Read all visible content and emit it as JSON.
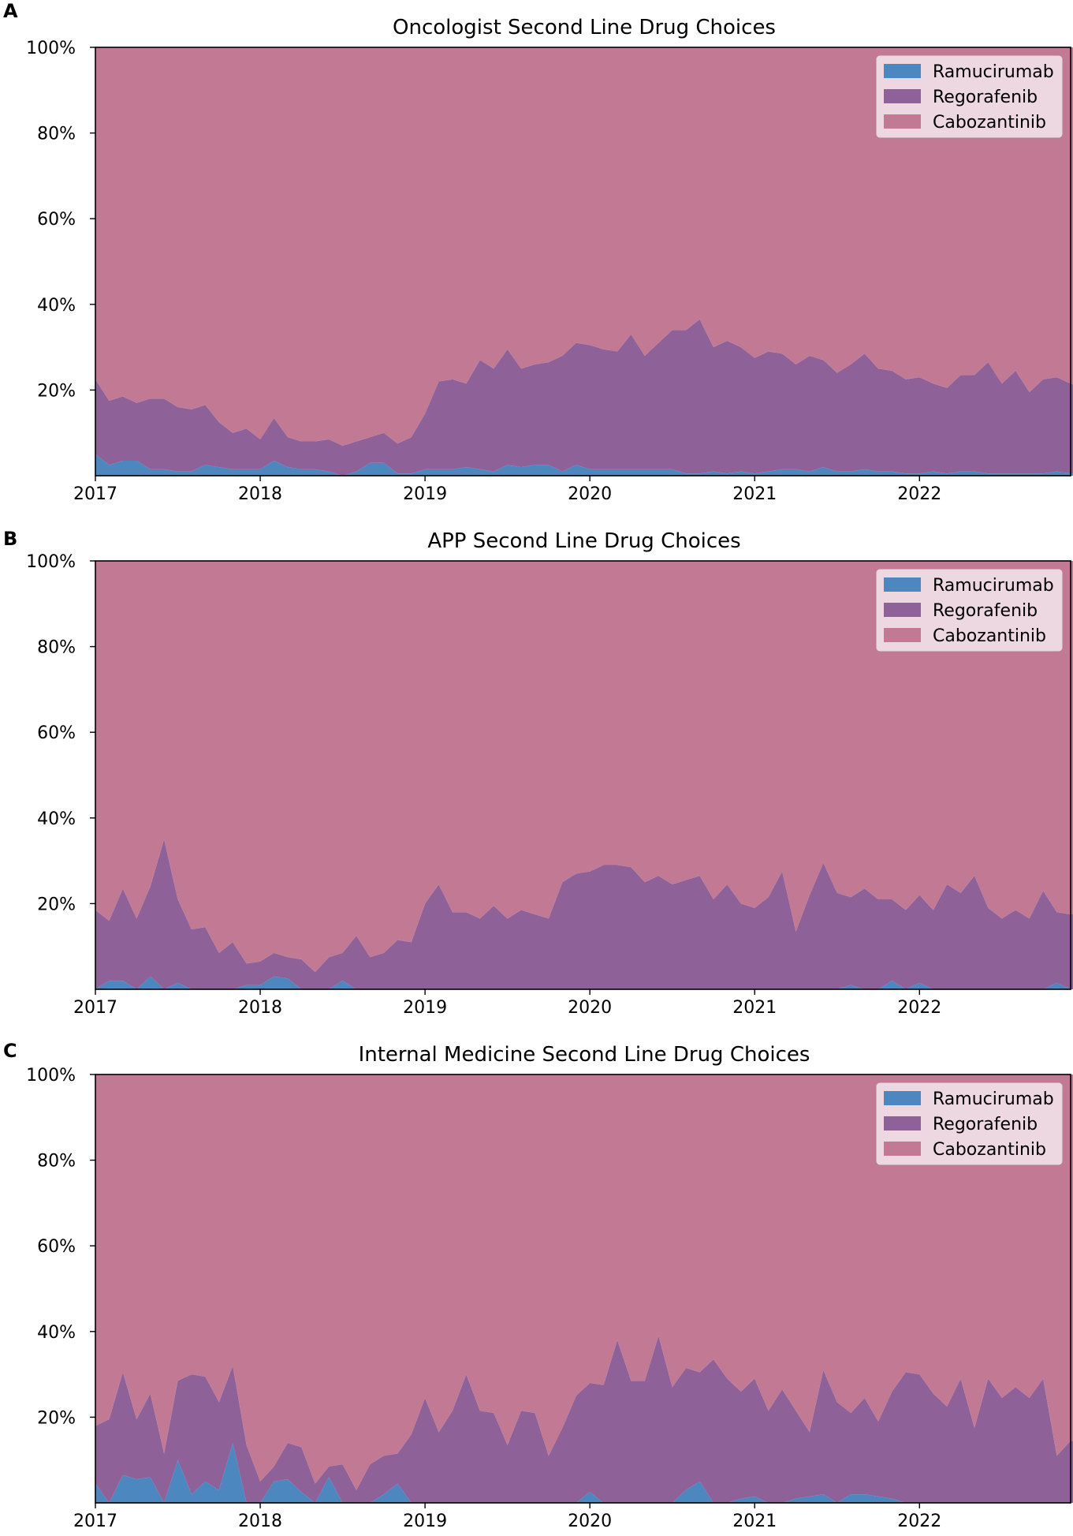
{
  "figure": {
    "panels": [
      "A",
      "B",
      "C"
    ],
    "colors": {
      "Ramucirumab": "#4d87c0",
      "Regorafenib": "#8e6199",
      "Cabozantinib": "#c27a94",
      "legend_bg": "#f3e4ea",
      "axis": "#000000"
    }
  },
  "chart_data": [
    {
      "panel": "A",
      "type": "area",
      "stacked": "percent",
      "title": "Oncologist Second Line Drug Choices",
      "xlabel": "",
      "ylabel": "",
      "x_start": 2017.0,
      "x_step_months": 1,
      "xlim": [
        2017.0,
        2022.917
      ],
      "ylim": [
        0,
        100
      ],
      "xtick_labels": [
        "2017",
        "2018",
        "2019",
        "2020",
        "2021",
        "2022"
      ],
      "ytick_labels": [
        "20%",
        "40%",
        "60%",
        "80%",
        "100%"
      ],
      "legend": [
        "Ramucirumab",
        "Regorafenib",
        "Cabozantinib"
      ],
      "legend_location": "top-right",
      "series": [
        {
          "name": "Ramucirumab",
          "values": [
            5,
            2.5,
            3.5,
            3.5,
            1.5,
            1.5,
            1,
            1,
            2.5,
            2,
            1.5,
            1.5,
            1.5,
            3.5,
            2,
            1.5,
            1.5,
            1,
            0,
            1,
            3,
            3,
            0.5,
            0.5,
            1.5,
            1.5,
            1.5,
            2,
            1.5,
            1,
            2.5,
            2,
            2.5,
            2.5,
            1,
            2.5,
            1.5,
            1.5,
            1.5,
            1.5,
            1.5,
            1.5,
            1.5,
            0.5,
            0.5,
            1,
            0.5,
            1,
            0.5,
            1,
            1.5,
            1.5,
            1,
            2,
            1,
            1,
            1.5,
            1,
            1,
            0.5,
            0.5,
            1,
            0.5,
            1,
            1,
            0.5,
            0.5,
            0.5,
            0.5,
            0.5,
            1,
            0.5,
            0.5
          ]
        },
        {
          "name": "Regorafenib",
          "values": [
            17.5,
            15,
            15,
            13.5,
            16.5,
            16.5,
            15,
            14.5,
            14,
            10.5,
            8.5,
            9.5,
            7,
            10,
            7,
            6.5,
            6.5,
            7.5,
            7,
            7,
            6,
            7,
            7,
            8.5,
            13,
            20.5,
            21,
            19.5,
            25.5,
            24,
            27,
            23,
            23.5,
            24,
            27,
            28.5,
            29,
            28,
            27.5,
            31.5,
            26.5,
            29.5,
            32.5,
            33.5,
            36,
            29,
            31,
            29,
            27,
            28,
            27,
            24.5,
            27,
            25,
            23,
            25,
            27,
            24,
            23.5,
            22,
            22.5,
            20.5,
            20,
            22.5,
            22.5,
            26,
            21,
            24,
            19,
            22,
            22,
            21,
            20,
            20.5
          ]
        },
        {
          "name": "Cabozantinib",
          "values": [
            77.5,
            82.5,
            81.5,
            83,
            82,
            82,
            84,
            84.5,
            83.5,
            87.5,
            90,
            89,
            91.5,
            86.5,
            91,
            92,
            92,
            91.5,
            93,
            92,
            91,
            90,
            92.5,
            91,
            85.5,
            78,
            77.5,
            78.5,
            73,
            75,
            70.5,
            75,
            74,
            73.5,
            72,
            69,
            69.5,
            70.5,
            71,
            67,
            72,
            69,
            66,
            66,
            63.5,
            70,
            68.5,
            70,
            72.5,
            71,
            71.5,
            74,
            72,
            73,
            76,
            74,
            71.5,
            75,
            75.5,
            77.5,
            77,
            78.5,
            79.5,
            76.5,
            76.5,
            73.5,
            78.5,
            75.5,
            80.5,
            77.5,
            77,
            78.5,
            79.5,
            79
          ]
        }
      ]
    },
    {
      "panel": "B",
      "type": "area",
      "stacked": "percent",
      "title": "APP Second Line Drug Choices",
      "xlabel": "",
      "ylabel": "",
      "x_start": 2017.0,
      "x_step_months": 1,
      "xlim": [
        2017.0,
        2022.917
      ],
      "ylim": [
        0,
        100
      ],
      "xtick_labels": [
        "2017",
        "2018",
        "2019",
        "2020",
        "2021",
        "2022"
      ],
      "ytick_labels": [
        "20%",
        "40%",
        "60%",
        "80%",
        "100%"
      ],
      "legend": [
        "Ramucirumab",
        "Regorafenib",
        "Cabozantinib"
      ],
      "legend_location": "top-right",
      "series": [
        {
          "name": "Ramucirumab",
          "values": [
            0,
            2,
            2,
            0,
            3,
            0,
            1.5,
            0,
            0,
            0,
            0,
            1,
            1,
            3,
            2.5,
            0,
            0,
            0,
            2,
            0,
            0,
            0,
            0,
            0,
            0,
            0,
            0,
            0,
            0,
            0,
            0,
            0,
            0,
            0,
            0,
            0,
            0,
            0,
            0,
            0,
            0,
            0,
            0,
            0,
            0,
            0,
            0,
            0,
            0,
            0,
            0,
            0,
            0,
            0,
            0,
            1,
            0,
            0,
            2,
            0,
            1.5,
            0,
            0,
            0,
            0,
            0,
            0,
            0,
            0,
            0,
            1.5,
            0,
            0,
            0
          ]
        },
        {
          "name": "Regorafenib",
          "values": [
            18.5,
            14,
            21.5,
            16.5,
            21,
            35,
            19.5,
            14,
            14.5,
            8.5,
            11,
            5,
            5.5,
            5.5,
            5,
            7,
            4,
            7.5,
            6.5,
            12.5,
            7.5,
            8.5,
            11.5,
            11,
            20,
            24.5,
            18,
            18,
            16.5,
            19.5,
            16.5,
            18.5,
            17.5,
            16.5,
            25,
            27,
            27.5,
            29,
            29,
            28.5,
            25,
            26.5,
            24.5,
            25.5,
            26.5,
            21,
            24.5,
            20,
            19,
            21.5,
            27.5,
            13.5,
            22,
            29.5,
            22.5,
            20.5,
            23.5,
            21,
            19,
            18.5,
            20.5,
            18.5,
            24.5,
            22.5,
            26.5,
            19,
            16.5,
            18.5,
            16.5,
            23,
            16.5,
            17.5,
            17.5,
            15
          ]
        },
        {
          "name": "Cabozantinib",
          "values": [
            81.5,
            84,
            76.5,
            83.5,
            76,
            65,
            79,
            86,
            85.5,
            91.5,
            89,
            94,
            93.5,
            91.5,
            92.5,
            93,
            96,
            92.5,
            91.5,
            87.5,
            92.5,
            91.5,
            88.5,
            89,
            80,
            75.5,
            82,
            82,
            83.5,
            80.5,
            83.5,
            81.5,
            82.5,
            83.5,
            75,
            73,
            72.5,
            71,
            71,
            71.5,
            75,
            73.5,
            75.5,
            74.5,
            73.5,
            79,
            75.5,
            80,
            81,
            78.5,
            72.5,
            86.5,
            78,
            70.5,
            77.5,
            78.5,
            76.5,
            79,
            79,
            81.5,
            78,
            81.5,
            75.5,
            77.5,
            73.5,
            81,
            83.5,
            81.5,
            83.5,
            77,
            82,
            82.5,
            82.5,
            85
          ]
        }
      ]
    },
    {
      "panel": "C",
      "type": "area",
      "stacked": "percent",
      "title": "Internal Medicine Second Line Drug Choices",
      "xlabel": "",
      "ylabel": "",
      "x_start": 2017.0,
      "x_step_months": 1,
      "xlim": [
        2017.0,
        2022.917
      ],
      "ylim": [
        0,
        100
      ],
      "xtick_labels": [
        "2017",
        "2018",
        "2019",
        "2020",
        "2021",
        "2022"
      ],
      "ytick_labels": [
        "20%",
        "40%",
        "60%",
        "80%",
        "100%"
      ],
      "legend": [
        "Ramucirumab",
        "Regorafenib",
        "Cabozantinib"
      ],
      "legend_location": "top-right",
      "series": [
        {
          "name": "Ramucirumab",
          "values": [
            4.5,
            0,
            6.5,
            5.5,
            6,
            0,
            10,
            2,
            5,
            3,
            14,
            0,
            0,
            5,
            5.5,
            2.5,
            0,
            6,
            0,
            0,
            0,
            2,
            4.5,
            0,
            0,
            0,
            0,
            0,
            0,
            0,
            0,
            0,
            0,
            0,
            0,
            0,
            2.5,
            0,
            0,
            0,
            0,
            0,
            0,
            3,
            5,
            0,
            0,
            1,
            1.5,
            0,
            0,
            1,
            1.5,
            2,
            0,
            2,
            2,
            1.5,
            1,
            0,
            0,
            0,
            0,
            0,
            0,
            0,
            0,
            0,
            0,
            0,
            0,
            0,
            0,
            0
          ]
        },
        {
          "name": "Regorafenib",
          "values": [
            13.5,
            19.5,
            24,
            14,
            19.5,
            11.5,
            18.5,
            28,
            24.5,
            20.5,
            18,
            13.5,
            5,
            3.5,
            8.5,
            10.5,
            4.5,
            2.5,
            9,
            3,
            9,
            9,
            7,
            16,
            24.5,
            16.5,
            21.5,
            30,
            21.5,
            21,
            13.5,
            21.5,
            21,
            11,
            17.5,
            25,
            25.5,
            27.5,
            38,
            28.5,
            28.5,
            39,
            27,
            28.5,
            25.5,
            33.5,
            29,
            25,
            27.5,
            21.5,
            26.5,
            20.5,
            15,
            29,
            23.5,
            19,
            22.5,
            17.5,
            25,
            30.5,
            30,
            25.5,
            22.5,
            29,
            17.5,
            29,
            24.5,
            27,
            24.5,
            29,
            11,
            14.5,
            14.5,
            14.5
          ]
        },
        {
          "name": "Cabozantinib",
          "values": [
            82,
            80.5,
            69.5,
            80.5,
            74.5,
            88.5,
            71.5,
            70,
            70.5,
            76.5,
            68,
            86.5,
            95,
            91.5,
            86,
            87,
            95.5,
            91.5,
            91,
            97,
            91,
            89,
            88.5,
            84,
            75.5,
            83.5,
            78.5,
            70,
            78.5,
            79,
            86.5,
            78.5,
            79,
            89,
            82.5,
            75,
            72,
            72.5,
            62,
            71.5,
            71.5,
            61,
            73,
            68.5,
            69.5,
            66.5,
            71,
            74,
            71,
            78.5,
            73.5,
            78.5,
            83.5,
            69,
            76.5,
            79,
            75.5,
            81,
            74,
            69.5,
            70,
            74.5,
            77.5,
            71,
            82.5,
            71,
            75.5,
            73,
            75.5,
            71,
            89,
            85.5,
            85.5,
            85.5
          ]
        }
      ]
    }
  ]
}
